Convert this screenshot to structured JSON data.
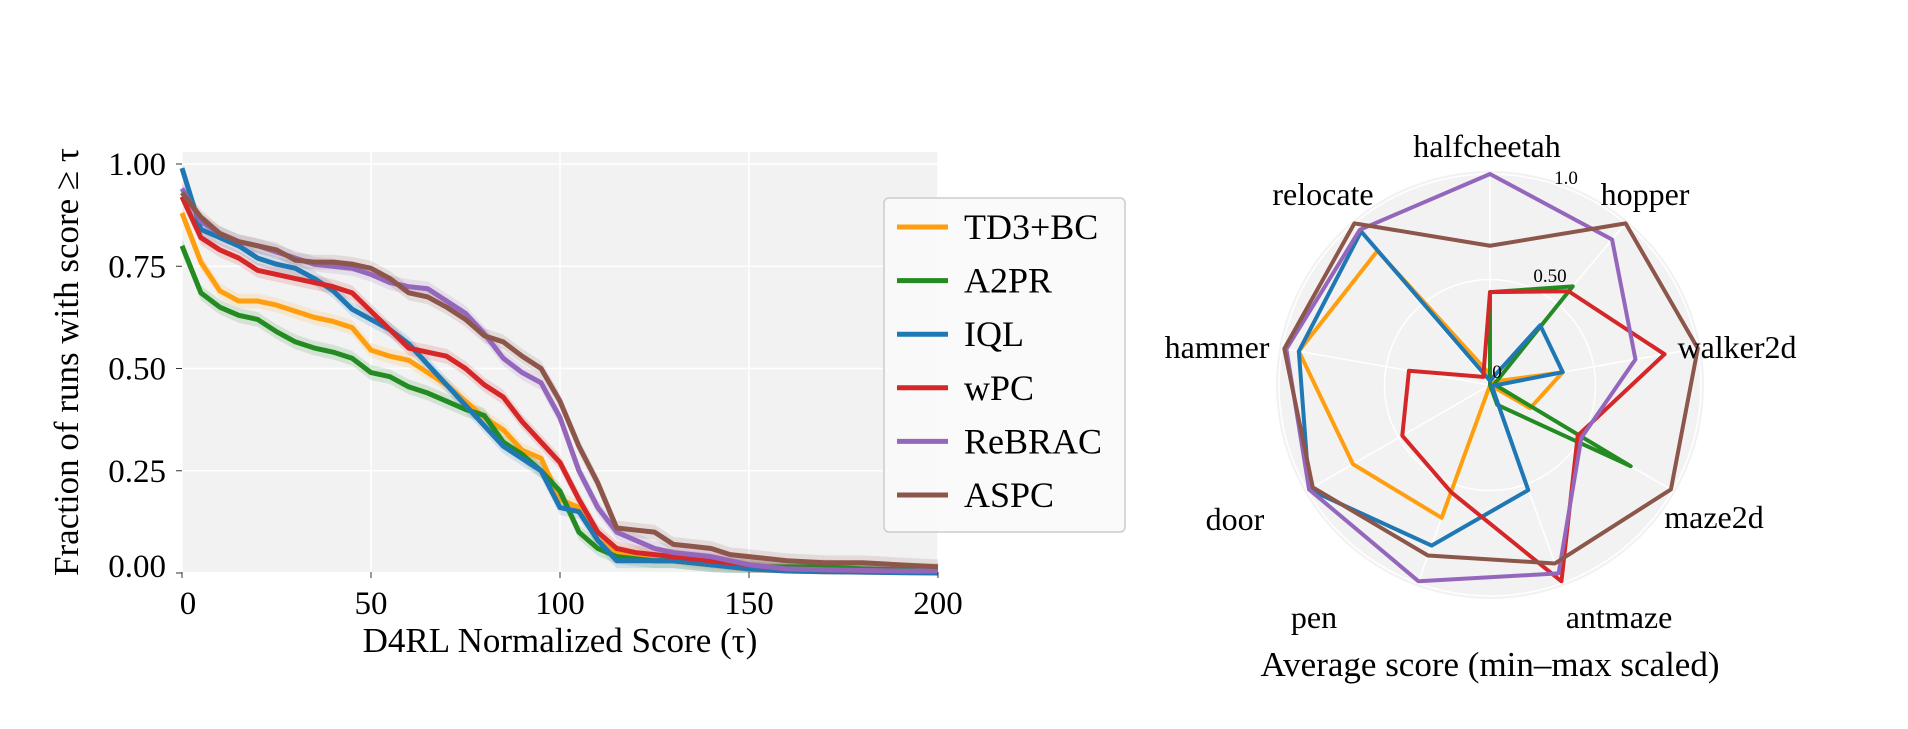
{
  "chart_data": [
    {
      "type": "line",
      "xlabel": "D4RL Normalized Score (τ)",
      "ylabel": "Fraction of runs with score ≥ τ",
      "xlim": [
        0,
        200
      ],
      "ylim": [
        0,
        1.0
      ],
      "xticks": [
        "0",
        "50",
        "100",
        "150",
        "200"
      ],
      "yticks": [
        "0.00",
        "0.25",
        "0.50",
        "0.75",
        "1.00"
      ],
      "grid": true,
      "legend": "right",
      "x": [
        0,
        5,
        10,
        15,
        20,
        25,
        30,
        35,
        40,
        45,
        50,
        55,
        60,
        65,
        70,
        75,
        80,
        85,
        90,
        95,
        100,
        105,
        110,
        115,
        120,
        125,
        130,
        135,
        140,
        145,
        150,
        160,
        170,
        180,
        190,
        200
      ],
      "series": [
        {
          "name": "TD3+BC",
          "color": "#ff9f0f",
          "values": [
            0.88,
            0.76,
            0.69,
            0.665,
            0.665,
            0.655,
            0.64,
            0.625,
            0.615,
            0.6,
            0.545,
            0.53,
            0.52,
            0.49,
            0.46,
            0.42,
            0.38,
            0.35,
            0.3,
            0.28,
            0.18,
            0.16,
            0.08,
            0.05,
            0.045,
            0.04,
            0.04,
            0.03,
            0.025,
            0.02,
            0.01,
            0.005,
            0.003,
            0.002,
            0.001,
            0.0
          ]
        },
        {
          "name": "A2PR",
          "color": "#238b22",
          "values": [
            0.8,
            0.685,
            0.65,
            0.63,
            0.62,
            0.59,
            0.565,
            0.55,
            0.54,
            0.525,
            0.49,
            0.48,
            0.455,
            0.44,
            0.42,
            0.4,
            0.385,
            0.32,
            0.29,
            0.25,
            0.2,
            0.1,
            0.06,
            0.04,
            0.035,
            0.03,
            0.03,
            0.025,
            0.02,
            0.018,
            0.015,
            0.015,
            0.015,
            0.01,
            0.008,
            0.005
          ]
        },
        {
          "name": "IQL",
          "color": "#1f77b4",
          "values": [
            0.99,
            0.84,
            0.82,
            0.8,
            0.77,
            0.755,
            0.745,
            0.72,
            0.69,
            0.645,
            0.62,
            0.595,
            0.56,
            0.51,
            0.46,
            0.41,
            0.36,
            0.31,
            0.28,
            0.25,
            0.16,
            0.15,
            0.08,
            0.03,
            0.03,
            0.03,
            0.03,
            0.025,
            0.02,
            0.015,
            0.01,
            0.005,
            0.003,
            0.002,
            0.001,
            0.0
          ]
        },
        {
          "name": "wPC",
          "color": "#d62728",
          "values": [
            0.92,
            0.82,
            0.79,
            0.77,
            0.74,
            0.73,
            0.72,
            0.71,
            0.7,
            0.685,
            0.64,
            0.595,
            0.55,
            0.54,
            0.53,
            0.5,
            0.46,
            0.43,
            0.37,
            0.32,
            0.27,
            0.18,
            0.1,
            0.06,
            0.05,
            0.045,
            0.04,
            0.035,
            0.03,
            0.025,
            0.02,
            0.01,
            0.008,
            0.006,
            0.005,
            0.005
          ]
        },
        {
          "name": "ReBRAC",
          "color": "#9467bd",
          "values": [
            0.94,
            0.86,
            0.83,
            0.81,
            0.8,
            0.785,
            0.77,
            0.755,
            0.75,
            0.745,
            0.73,
            0.71,
            0.7,
            0.695,
            0.665,
            0.635,
            0.585,
            0.525,
            0.49,
            0.465,
            0.38,
            0.25,
            0.16,
            0.1,
            0.08,
            0.06,
            0.05,
            0.045,
            0.04,
            0.03,
            0.02,
            0.01,
            0.008,
            0.006,
            0.005,
            0.005
          ]
        },
        {
          "name": "ASPC",
          "color": "#8c564b",
          "values": [
            0.93,
            0.87,
            0.83,
            0.81,
            0.8,
            0.79,
            0.765,
            0.76,
            0.76,
            0.755,
            0.745,
            0.72,
            0.685,
            0.675,
            0.65,
            0.62,
            0.58,
            0.565,
            0.53,
            0.5,
            0.42,
            0.31,
            0.22,
            0.11,
            0.105,
            0.1,
            0.07,
            0.065,
            0.06,
            0.045,
            0.04,
            0.03,
            0.025,
            0.025,
            0.02,
            0.015
          ]
        }
      ]
    },
    {
      "type": "radar",
      "title": "Average score (min–max scaled)",
      "axes": [
        "halfcheetah",
        "hopper",
        "walker2d",
        "maze2d",
        "antmaze",
        "pen",
        "door",
        "hammer",
        "relocate"
      ],
      "radial_ticks": [
        "0",
        "0.50",
        "1.0"
      ],
      "rlim": [
        0,
        1.0
      ],
      "series": [
        {
          "name": "TD3+BC",
          "color": "#ff9f0f",
          "values": [
            0.05,
            0.02,
            0.35,
            0.22,
            0.0,
            0.67,
            0.75,
            0.92,
            0.83
          ]
        },
        {
          "name": "A2PR",
          "color": "#238b22",
          "values": [
            0.44,
            0.61,
            0.02,
            0.77,
            0.1,
            0.0,
            0.0,
            0.0,
            0.0
          ]
        },
        {
          "name": "IQL",
          "color": "#1f77b4",
          "values": [
            0.02,
            0.37,
            0.35,
            0.01,
            0.53,
            0.81,
            0.99,
            0.92,
            0.95
          ]
        },
        {
          "name": "wPC",
          "color": "#d62728",
          "values": [
            0.44,
            0.58,
            0.84,
            0.48,
            0.99,
            0.54,
            0.48,
            0.39,
            0.05
          ]
        },
        {
          "name": "ReBRAC",
          "color": "#9467bd",
          "values": [
            1.0,
            0.9,
            0.7,
            0.5,
            0.95,
            0.99,
            0.99,
            0.98,
            0.96
          ]
        },
        {
          "name": "ASPC",
          "color": "#8c564b",
          "values": [
            0.66,
            1.0,
            1.0,
            0.99,
            0.9,
            0.86,
            0.97,
            0.99,
            1.0
          ]
        }
      ]
    }
  ]
}
